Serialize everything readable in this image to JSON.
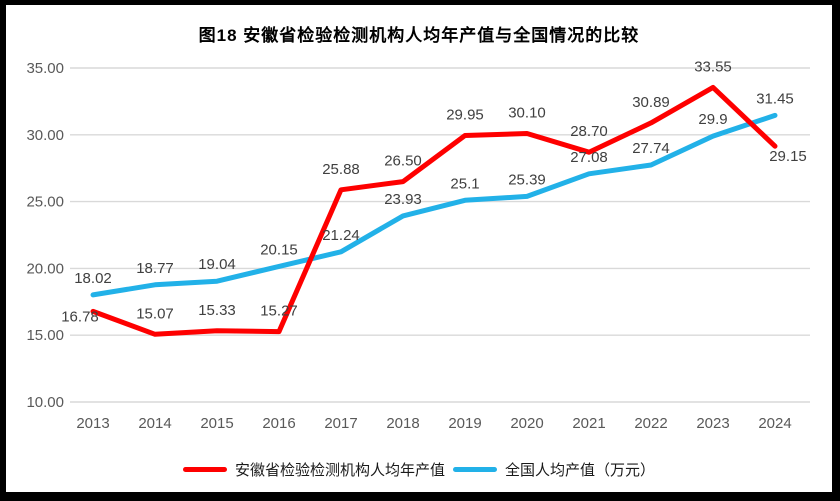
{
  "title": "图18  安徽省检验检测机构人均年产值与全国情况的比较",
  "colors": {
    "anhui_red": "#fe0000",
    "national_blue": "#22b1e8",
    "grid": "#d9d9d9",
    "axis_text": "#595959",
    "label_text": "#404040",
    "frame": "#000000"
  },
  "chart_data": {
    "type": "line",
    "title": "图18  安徽省检验检测机构人均年产值与全国情况的比较",
    "categories": [
      "2013",
      "2014",
      "2015",
      "2016",
      "2017",
      "2018",
      "2019",
      "2020",
      "2021",
      "2022",
      "2023",
      "2024"
    ],
    "series": [
      {
        "name": "安徽省检验检测机构人均年产值",
        "color": "#fe0000",
        "values": [
          16.78,
          15.07,
          15.33,
          15.27,
          25.88,
          26.5,
          29.95,
          30.1,
          28.7,
          30.89,
          33.55,
          29.15
        ],
        "labels": [
          "16.78",
          "15.07",
          "15.33",
          "15.27",
          "25.88",
          "26.50",
          "29.95",
          "30.10",
          "28.70",
          "30.89",
          "33.55",
          "29.15"
        ],
        "label_dy": -16,
        "label_overrides": {
          "0": [
            -13,
            10
          ],
          "11": [
            13,
            15
          ]
        }
      },
      {
        "name": "全国人均产值（万元）",
        "color": "#22b1e8",
        "values": [
          18.02,
          18.77,
          19.04,
          20.15,
          21.24,
          23.93,
          25.1,
          25.39,
          27.08,
          27.74,
          29.9,
          31.45
        ],
        "labels": [
          "18.02",
          "18.77",
          "19.04",
          "20.15",
          "21.24",
          "23.93",
          "25.1",
          "25.39",
          "27.08",
          "27.74",
          "29.9",
          "31.45"
        ],
        "label_dy": -12
      }
    ],
    "xlabel": "",
    "ylabel": "",
    "ylim": [
      10,
      35
    ],
    "ytick_step": 5,
    "yticks": [
      "35.00",
      "30.00",
      "25.00",
      "20.00",
      "15.00",
      "10.00"
    ],
    "grid": "horizontal-only",
    "legend_position": "bottom"
  }
}
